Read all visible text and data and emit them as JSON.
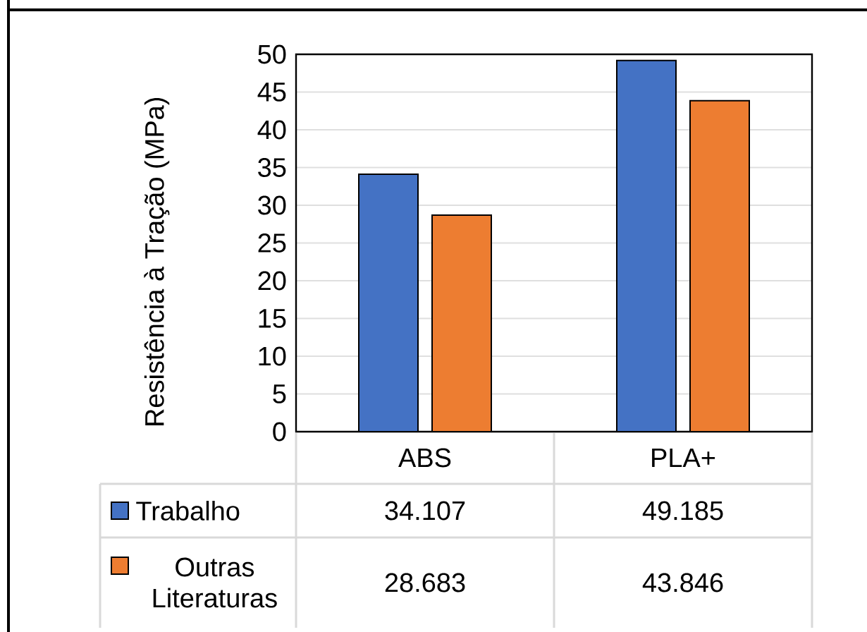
{
  "chart_data": {
    "type": "bar",
    "ylabel": "Resistência à Tração (MPa)",
    "categories": [
      "ABS",
      "PLA+"
    ],
    "series": [
      {
        "name": "Trabalho",
        "color": "#4472c4",
        "values": [
          34.107,
          49.185
        ]
      },
      {
        "name": "Outras Literaturas",
        "color": "#ed7d31",
        "values": [
          28.683,
          43.846
        ]
      }
    ],
    "ylim": [
      0,
      50
    ],
    "yticks": [
      0,
      5,
      10,
      15,
      20,
      25,
      30,
      35,
      40,
      45,
      50
    ],
    "data_labels": true,
    "legend": "bottom",
    "grid": "y"
  }
}
